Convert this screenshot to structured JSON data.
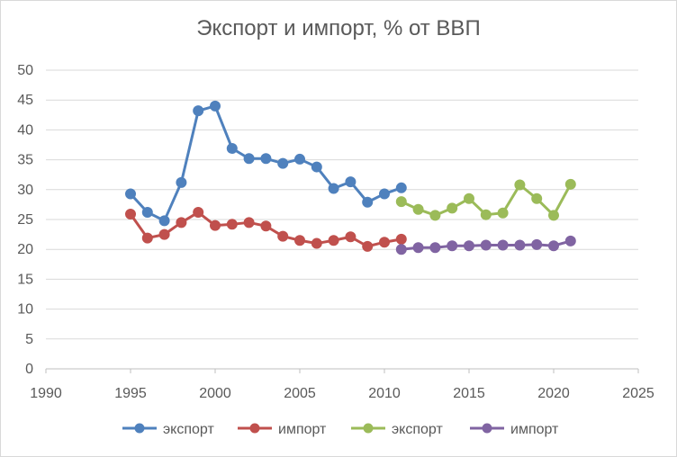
{
  "chart_data": {
    "type": "scatter",
    "title": "Экспорт и импорт, % от ВВП",
    "xlim": [
      1990,
      2025
    ],
    "ylim": [
      0,
      50
    ],
    "x_ticks": [
      "1990",
      "1995",
      "2000",
      "2005",
      "2010",
      "2015",
      "2020",
      "2025"
    ],
    "y_ticks": [
      "0",
      "5",
      "10",
      "15",
      "20",
      "25",
      "30",
      "35",
      "40",
      "45",
      "50"
    ],
    "grid": "horizontal",
    "legend_position": "bottom",
    "series": [
      {
        "name": "экспорт",
        "color": "#4f81bd",
        "x": [
          1995,
          1996,
          1997,
          1998,
          1999,
          2000,
          2001,
          2002,
          2003,
          2004,
          2005,
          2006,
          2007,
          2008,
          2009,
          2010,
          2011
        ],
        "y": [
          29.3,
          26.2,
          24.8,
          31.2,
          43.2,
          44.0,
          36.9,
          35.2,
          35.2,
          34.4,
          35.1,
          33.8,
          30.2,
          31.3,
          27.9,
          29.3,
          30.3
        ]
      },
      {
        "name": "импорт",
        "color": "#c0504d",
        "x": [
          1995,
          1996,
          1997,
          1998,
          1999,
          2000,
          2001,
          2002,
          2003,
          2004,
          2005,
          2006,
          2007,
          2008,
          2009,
          2010,
          2011
        ],
        "y": [
          25.9,
          21.9,
          22.5,
          24.5,
          26.2,
          24.0,
          24.2,
          24.5,
          23.9,
          22.2,
          21.5,
          21.0,
          21.5,
          22.1,
          20.5,
          21.2,
          21.7
        ]
      },
      {
        "name": "экспорт",
        "color": "#9bbb59",
        "x": [
          2011,
          2012,
          2013,
          2014,
          2015,
          2016,
          2017,
          2018,
          2019,
          2020,
          2021
        ],
        "y": [
          28.0,
          26.7,
          25.7,
          26.9,
          28.5,
          25.8,
          26.1,
          30.8,
          28.5,
          25.7,
          30.9
        ]
      },
      {
        "name": "импорт",
        "color": "#8064a2",
        "x": [
          2011,
          2012,
          2013,
          2014,
          2015,
          2016,
          2017,
          2018,
          2019,
          2020,
          2021
        ],
        "y": [
          20.0,
          20.3,
          20.3,
          20.6,
          20.6,
          20.7,
          20.7,
          20.7,
          20.8,
          20.6,
          21.4
        ]
      }
    ]
  }
}
